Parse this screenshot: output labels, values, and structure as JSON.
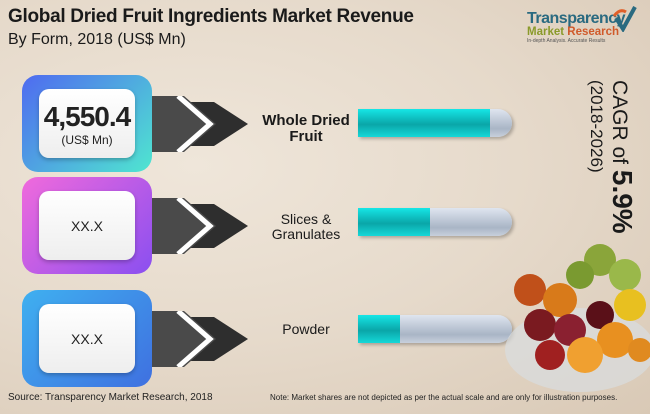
{
  "header": {
    "title": "Global Dried Fruit Ingredients Market Revenue",
    "subtitle": "By Form, 2018 (US$ Mn)"
  },
  "logo": {
    "line1": "Transparency",
    "line2a": "Market",
    "line2b": "Research",
    "tagline": "In-depth Analysis. Accurate Results"
  },
  "cagr": {
    "prefix": "CAGR of",
    "value": "5.9%",
    "period": "(2018-2026)"
  },
  "colors": {
    "bar": "#0fc6c8",
    "track": "#b8c2d0",
    "card1": [
      "#4f6af0",
      "#4fe6d0"
    ],
    "card2": [
      "#f06adc",
      "#8a4ff0"
    ],
    "card3": [
      "#3fb0f0",
      "#3f70e0"
    ]
  },
  "chart_data": {
    "type": "bar",
    "title": "Global Dried Fruit Ingredients Market Revenue",
    "subtitle": "By Form, 2018 (US$ Mn)",
    "categories": [
      "Whole Dried Fruit",
      "Slices & Granulates",
      "Powder"
    ],
    "values": [
      "4,550.4",
      "XX.X",
      "XX.X"
    ],
    "unit": "(US$ Mn)",
    "bar_fill_fraction": [
      0.86,
      0.47,
      0.27
    ],
    "orientation": "horizontal"
  },
  "footer": {
    "source": "Source: Transparency Market Research, 2018",
    "note": "Note: Market shares are not depicted as per the actual scale and are only for illustration purposes."
  }
}
